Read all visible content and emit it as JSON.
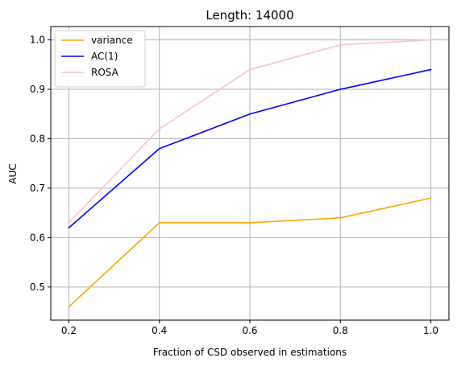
{
  "chart_data": {
    "type": "line",
    "title": "Length: 14000",
    "xlabel": "Fraction of CSD observed in estimations",
    "ylabel": "AUC",
    "x": [
      0.2,
      0.4,
      0.6,
      0.8,
      1.0
    ],
    "xticks": [
      "0.2",
      "0.4",
      "0.6",
      "0.8",
      "1.0"
    ],
    "yticks": [
      "0.5",
      "0.6",
      "0.7",
      "0.8",
      "0.9",
      "1.0"
    ],
    "xlim": [
      0.16,
      1.04
    ],
    "ylim": [
      0.433,
      1.027
    ],
    "grid": true,
    "legend_position": "top-left",
    "series": [
      {
        "name": "variance",
        "color": "#FFA500",
        "values": [
          0.46,
          0.63,
          0.63,
          0.64,
          0.68
        ]
      },
      {
        "name": "AC(1)",
        "color": "#0000FF",
        "values": [
          0.62,
          0.78,
          0.85,
          0.9,
          0.94
        ]
      },
      {
        "name": "ROSA",
        "color": "#FFC0CB",
        "values": [
          0.63,
          0.82,
          0.94,
          0.99,
          1.0
        ]
      }
    ]
  }
}
